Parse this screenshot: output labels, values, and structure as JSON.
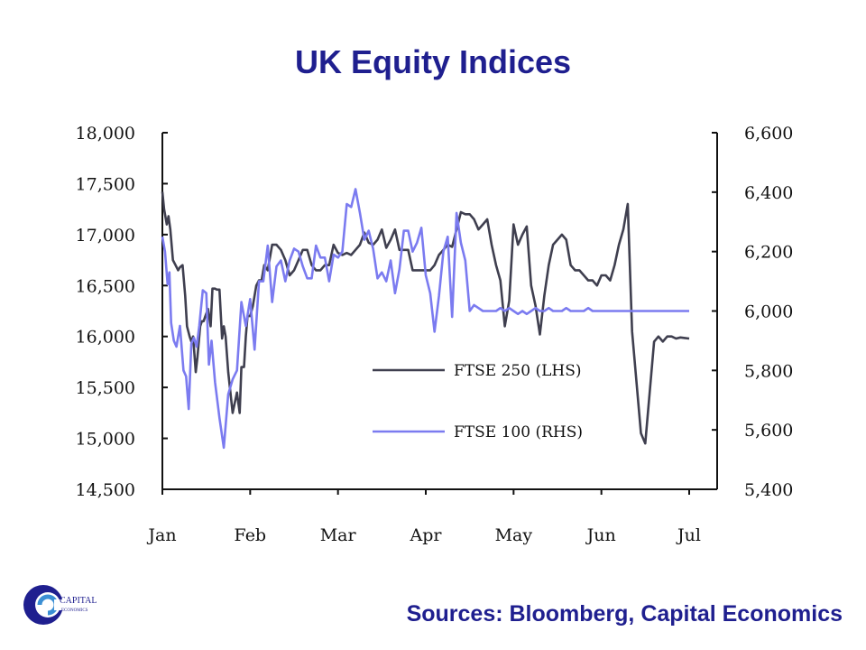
{
  "title": "UK Equity Indices",
  "source": "Sources: Bloomberg, Capital Economics",
  "logo": {
    "text_top": "CAPITAL",
    "text_bottom": "ECONOMICS"
  },
  "colors": {
    "title": "#1f1f8f",
    "ftse250": "#3f3f4f",
    "ftse100": "#7b7bf0",
    "axis": "#111111"
  },
  "chart_data": {
    "type": "line",
    "title": "UK Equity Indices",
    "x_tick_labels": [
      "Jan",
      "Feb",
      "Mar",
      "Apr",
      "May",
      "Jun",
      "Jul"
    ],
    "left_axis": {
      "min": 14500,
      "max": 18000,
      "ticks": [
        14500,
        15000,
        15500,
        16000,
        16500,
        17000,
        17500,
        18000
      ],
      "tick_labels": [
        "14,500",
        "15,000",
        "15,500",
        "16,000",
        "16,500",
        "17,000",
        "17,500",
        "18,000"
      ]
    },
    "right_axis": {
      "min": 5400,
      "max": 6600,
      "ticks": [
        5400,
        5600,
        5800,
        6000,
        6200,
        6400,
        6600
      ],
      "tick_labels": [
        "5,400",
        "5,600",
        "5,800",
        "6,000",
        "6,200",
        "6,400",
        "6,600"
      ]
    },
    "legend": {
      "position": "center-right"
    },
    "series": [
      {
        "name": "FTSE 250 (LHS)",
        "axis": "left",
        "x": [
          0,
          0.02,
          0.05,
          0.07,
          0.09,
          0.12,
          0.15,
          0.18,
          0.2,
          0.23,
          0.26,
          0.28,
          0.31,
          0.33,
          0.35,
          0.38,
          0.4,
          0.43,
          0.45,
          0.47,
          0.49,
          0.52,
          0.55,
          0.57,
          0.6,
          0.62,
          0.65,
          0.68,
          0.7,
          0.72,
          0.75,
          0.8,
          0.85,
          0.88,
          0.9,
          0.93,
          0.95,
          0.97,
          1.0,
          1.03,
          1.07,
          1.1,
          1.13,
          1.16,
          1.2,
          1.25,
          1.3,
          1.35,
          1.4,
          1.45,
          1.5,
          1.55,
          1.6,
          1.65,
          1.7,
          1.75,
          1.8,
          1.85,
          1.9,
          1.95,
          2.0,
          2.05,
          2.1,
          2.15,
          2.2,
          2.25,
          2.3,
          2.35,
          2.4,
          2.45,
          2.5,
          2.55,
          2.6,
          2.65,
          2.7,
          2.75,
          2.8,
          2.85,
          2.9,
          2.95,
          3.0,
          3.05,
          3.1,
          3.15,
          3.2,
          3.25,
          3.3,
          3.35,
          3.4,
          3.45,
          3.5,
          3.55,
          3.6,
          3.65,
          3.7,
          3.75,
          3.8,
          3.85,
          3.9,
          3.95,
          4.0,
          4.05,
          4.1,
          4.15,
          4.2,
          4.25,
          4.3,
          4.35,
          4.4,
          4.45,
          4.5,
          4.55,
          4.6,
          4.65,
          4.7,
          4.75,
          4.8,
          4.85,
          4.9,
          4.95,
          5.0,
          5.05,
          5.1,
          5.15,
          5.2,
          5.25,
          5.3,
          5.35,
          5.4,
          5.45,
          5.5,
          5.55,
          5.6,
          5.65,
          5.7,
          5.75,
          5.8,
          5.85,
          5.9,
          5.95,
          6.0
        ],
        "y": [
          17420,
          17250,
          17100,
          17180,
          17050,
          16750,
          16700,
          16650,
          16680,
          16700,
          16400,
          16100,
          16000,
          15950,
          16000,
          15650,
          15800,
          16100,
          16150,
          16150,
          16200,
          16270,
          16100,
          16470,
          16470,
          16460,
          16460,
          15980,
          16100,
          16000,
          15650,
          15250,
          15450,
          15250,
          15700,
          15700,
          16000,
          16200,
          16200,
          16300,
          16500,
          16550,
          16550,
          16700,
          16650,
          16900,
          16900,
          16850,
          16750,
          16600,
          16650,
          16750,
          16850,
          16850,
          16700,
          16650,
          16650,
          16700,
          16700,
          16900,
          16820,
          16800,
          16820,
          16800,
          16850,
          16900,
          17020,
          16920,
          16900,
          16950,
          17050,
          16870,
          16950,
          17050,
          16850,
          16850,
          16850,
          16650,
          16650,
          16650,
          16650,
          16650,
          16700,
          16800,
          16850,
          16900,
          16880,
          17050,
          17220,
          17200,
          17200,
          17150,
          17050,
          17100,
          17150,
          16900,
          16700,
          16550,
          16100,
          16350,
          17100,
          16900,
          17000,
          17080,
          16500,
          16300,
          16020,
          16400,
          16700,
          16900,
          16950,
          17000,
          16950,
          16700,
          16650,
          16650,
          16600,
          16550,
          16550,
          16500,
          16600,
          16600,
          16550,
          16700,
          16900,
          17050,
          17300,
          16050,
          15550,
          15050,
          14950,
          15450,
          15950,
          16000,
          15950,
          16000,
          16000,
          15980,
          15990,
          15985,
          15980
        ],
        "x_unit": "months from Jan"
      },
      {
        "name": "FTSE 100 (RHS)",
        "axis": "right",
        "x": [
          0,
          0.03,
          0.06,
          0.08,
          0.1,
          0.13,
          0.16,
          0.2,
          0.24,
          0.27,
          0.3,
          0.33,
          0.36,
          0.39,
          0.42,
          0.46,
          0.5,
          0.53,
          0.56,
          0.6,
          0.65,
          0.7,
          0.75,
          0.8,
          0.85,
          0.9,
          0.95,
          1.0,
          1.05,
          1.1,
          1.15,
          1.2,
          1.25,
          1.3,
          1.35,
          1.4,
          1.45,
          1.5,
          1.55,
          1.6,
          1.65,
          1.7,
          1.75,
          1.8,
          1.85,
          1.9,
          1.95,
          2.0,
          2.05,
          2.1,
          2.15,
          2.2,
          2.25,
          2.3,
          2.35,
          2.4,
          2.45,
          2.5,
          2.55,
          2.6,
          2.65,
          2.7,
          2.75,
          2.8,
          2.85,
          2.9,
          2.95,
          3.0,
          3.05,
          3.1,
          3.15,
          3.2,
          3.25,
          3.3,
          3.35,
          3.4,
          3.45,
          3.5,
          3.55,
          3.6,
          3.65,
          3.7,
          3.75,
          3.8,
          3.85,
          3.9,
          3.95,
          4.0,
          4.05,
          4.1,
          4.15,
          4.2,
          4.25,
          4.3,
          4.35,
          4.4,
          4.45,
          4.5,
          4.55,
          4.6,
          4.65,
          4.7,
          4.75,
          4.8,
          4.85,
          4.9,
          4.95,
          5.0,
          5.05,
          5.1,
          5.15,
          5.2,
          5.25,
          5.3,
          5.35,
          5.4,
          5.45,
          5.5,
          5.55,
          5.6,
          5.65,
          5.7,
          5.75,
          5.8,
          5.85,
          5.9,
          5.95,
          6.0
        ],
        "y": [
          6250,
          6200,
          6090,
          6130,
          5960,
          5900,
          5880,
          5950,
          5800,
          5780,
          5670,
          5890,
          5910,
          5880,
          5950,
          6070,
          6060,
          5820,
          5900,
          5760,
          5640,
          5540,
          5720,
          5770,
          5800,
          6030,
          5950,
          6040,
          5870,
          6100,
          6100,
          6220,
          6030,
          6150,
          6170,
          6100,
          6170,
          6210,
          6200,
          6150,
          6110,
          6110,
          6220,
          6180,
          6180,
          6100,
          6190,
          6180,
          6200,
          6360,
          6350,
          6410,
          6330,
          6240,
          6270,
          6210,
          6110,
          6130,
          6100,
          6170,
          6060,
          6140,
          6270,
          6270,
          6200,
          6230,
          6280,
          6120,
          6060,
          5930,
          6050,
          6200,
          6250,
          5980,
          6330,
          6230,
          6170,
          6000,
          6020,
          6010,
          6000,
          6000,
          6000,
          6000,
          6010,
          6000,
          6010,
          6000,
          5990,
          6000,
          5990,
          6000,
          6010,
          6000,
          6000,
          6010,
          6000,
          6000,
          6000,
          6010,
          6000,
          6000,
          6000,
          6000,
          6010,
          6000,
          6000,
          6000,
          6000,
          6000,
          6000,
          6000,
          6000,
          6000,
          6000,
          6000,
          6000,
          6000,
          6000,
          6000,
          6000,
          6000,
          6000,
          6000,
          6000,
          6000,
          6000,
          6000
        ],
        "x_unit": "months from Jan"
      }
    ]
  }
}
